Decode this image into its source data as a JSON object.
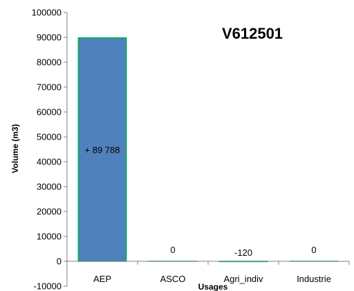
{
  "chart_data": {
    "type": "bar",
    "title": "V612501",
    "xlabel": "Usages",
    "ylabel": "Volume (m3)",
    "categories": [
      "AEP",
      "ASCO",
      "Agri_indiv",
      "Industrie"
    ],
    "values": [
      89788,
      0,
      -120,
      0
    ],
    "data_labels": [
      "+ 89 788",
      "0",
      "-120",
      "0"
    ],
    "ylim": [
      -10000,
      100000
    ],
    "yticks": [
      -10000,
      0,
      10000,
      20000,
      30000,
      40000,
      50000,
      60000,
      70000,
      80000,
      90000,
      100000
    ],
    "grid": false,
    "legend": "none",
    "colors": {
      "bar_fill": "#4f81bd",
      "bar_stroke": "#00b050",
      "axis": "#808080"
    }
  }
}
